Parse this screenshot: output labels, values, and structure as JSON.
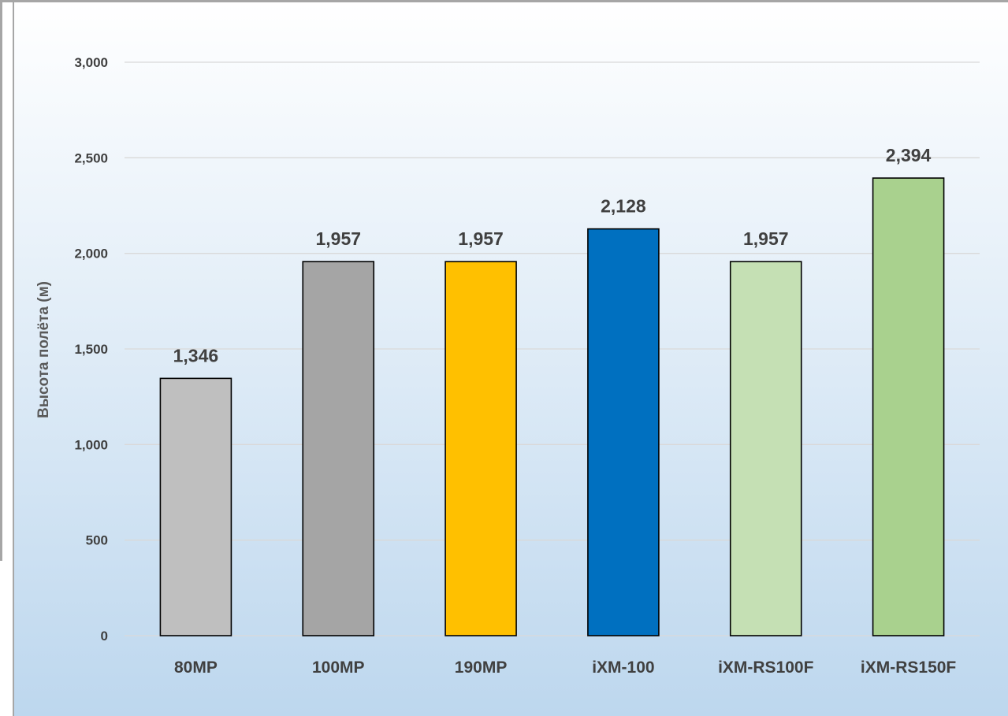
{
  "chart_data": {
    "type": "bar",
    "categories": [
      "80MP",
      "100MP",
      "190MP",
      "iXM-100",
      "iXM-RS100F",
      "iXM-RS150F"
    ],
    "values": [
      1346,
      1957,
      1957,
      2128,
      1957,
      2394
    ],
    "value_labels": [
      "1,346",
      "1,957",
      "1,957",
      "2,128",
      "1,957",
      "2,394"
    ],
    "bar_colors": [
      "#bfbfbf",
      "#a5a5a5",
      "#ffc000",
      "#0070c0",
      "#c5e0b4",
      "#a9d18e"
    ],
    "title": "",
    "xlabel": "",
    "ylabel": "Высота полёта (м)",
    "ylim": [
      0,
      3000
    ],
    "yticks": [
      0,
      500,
      1000,
      1500,
      2000,
      2500,
      3000
    ],
    "ytick_labels": [
      "0",
      "500",
      "1,000",
      "1,500",
      "2,000",
      "2,500",
      "3,000"
    ],
    "grid": true,
    "legend": "none",
    "colors": {
      "background_top": "#ffffff",
      "background_bottom": "#bdd7ee",
      "gridline": "#d9d9d9",
      "text": "#404040",
      "bar_outline": "#000000",
      "frame": "#a6a6a6"
    }
  }
}
